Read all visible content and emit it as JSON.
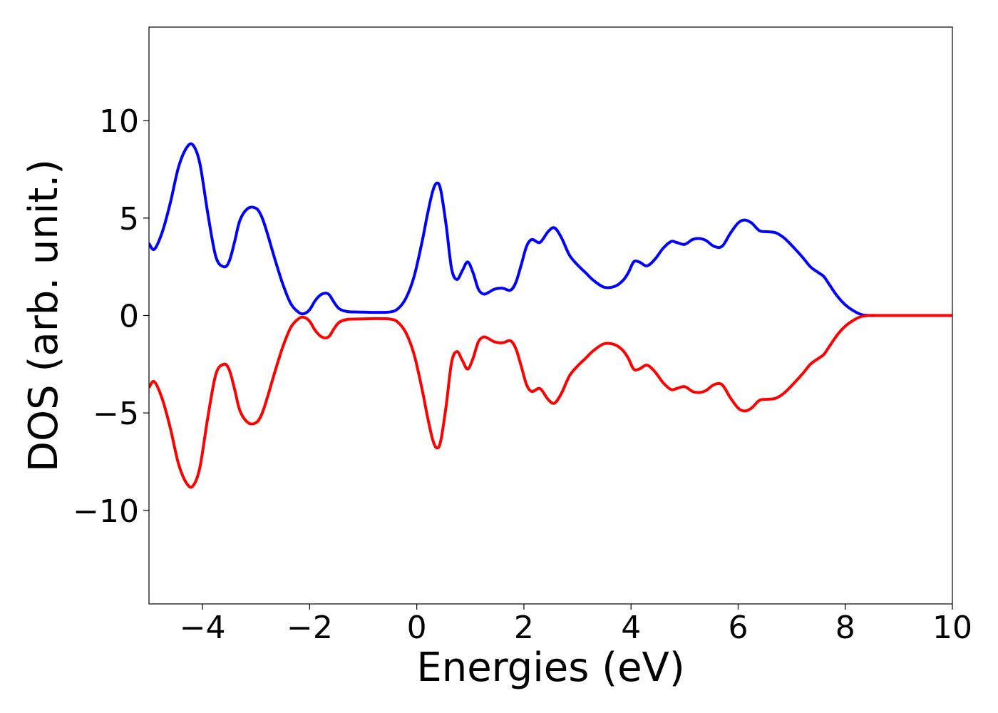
{
  "chart_data": {
    "type": "line",
    "title": "",
    "xlabel": "Energies (eV)",
    "ylabel": "DOS (arb. unit.)",
    "xlim": [
      -5,
      10
    ],
    "ylim": [
      -14.8,
      14.8
    ],
    "xticks": [
      -4,
      -2,
      0,
      2,
      4,
      6,
      8,
      10
    ],
    "xtick_labels": [
      "−4",
      "−2",
      "0",
      "2",
      "4",
      "6",
      "8",
      "10"
    ],
    "yticks": [
      -10,
      -5,
      0,
      5,
      10
    ],
    "ytick_labels": [
      "−10",
      "−5",
      "0",
      "5",
      "10"
    ],
    "grid": false,
    "legend": "none",
    "series": [
      {
        "color": "#0000ff",
        "x": [
          -5.0,
          -4.9,
          -4.75,
          -4.6,
          -4.45,
          -4.3,
          -4.18,
          -4.05,
          -3.9,
          -3.75,
          -3.6,
          -3.5,
          -3.4,
          -3.3,
          -3.15,
          -3.0,
          -2.9,
          -2.8,
          -2.65,
          -2.5,
          -2.35,
          -2.2,
          -2.1,
          -2.0,
          -1.9,
          -1.8,
          -1.7,
          -1.63,
          -1.55,
          -1.45,
          -1.3,
          -1.1,
          -0.8,
          -0.5,
          -0.35,
          -0.2,
          -0.05,
          0.1,
          0.2,
          0.3,
          0.38,
          0.45,
          0.55,
          0.65,
          0.75,
          0.85,
          0.95,
          1.05,
          1.15,
          1.25,
          1.35,
          1.45,
          1.6,
          1.75,
          1.85,
          1.95,
          2.05,
          2.15,
          2.3,
          2.45,
          2.57,
          2.7,
          2.85,
          3.0,
          3.15,
          3.3,
          3.5,
          3.7,
          3.85,
          3.95,
          4.05,
          4.15,
          4.3,
          4.45,
          4.6,
          4.75,
          4.85,
          5.0,
          5.15,
          5.27,
          5.4,
          5.55,
          5.7,
          5.85,
          6.0,
          6.12,
          6.25,
          6.4,
          6.55,
          6.7,
          6.85,
          7.0,
          7.2,
          7.35,
          7.5,
          7.6,
          7.7,
          7.85,
          8.0,
          8.15,
          8.3,
          8.45,
          8.6,
          9.0,
          10.0
        ],
        "y": [
          3.7,
          3.4,
          4.3,
          5.8,
          7.6,
          8.6,
          8.75,
          7.8,
          5.2,
          3.0,
          2.5,
          2.8,
          3.8,
          4.9,
          5.5,
          5.5,
          5.1,
          4.3,
          2.9,
          1.6,
          0.6,
          0.15,
          0.1,
          0.3,
          0.75,
          1.05,
          1.15,
          1.05,
          0.7,
          0.35,
          0.2,
          0.18,
          0.16,
          0.18,
          0.35,
          0.9,
          2.0,
          3.8,
          5.2,
          6.4,
          6.8,
          6.4,
          4.6,
          2.4,
          1.85,
          2.3,
          2.75,
          2.2,
          1.35,
          1.1,
          1.2,
          1.35,
          1.4,
          1.3,
          1.7,
          2.6,
          3.55,
          3.9,
          3.75,
          4.3,
          4.5,
          4.0,
          3.1,
          2.6,
          2.2,
          1.8,
          1.45,
          1.5,
          1.8,
          2.2,
          2.75,
          2.75,
          2.55,
          2.9,
          3.45,
          3.8,
          3.75,
          3.65,
          3.9,
          3.95,
          3.85,
          3.55,
          3.55,
          4.2,
          4.75,
          4.9,
          4.75,
          4.35,
          4.3,
          4.25,
          4.0,
          3.6,
          3.0,
          2.5,
          2.2,
          2.0,
          1.6,
          1.0,
          0.55,
          0.25,
          0.05,
          0.0,
          0.0,
          0.0,
          0.0
        ]
      },
      {
        "color": "#ff0000",
        "x": [
          -5.0,
          -4.9,
          -4.75,
          -4.6,
          -4.45,
          -4.3,
          -4.18,
          -4.05,
          -3.9,
          -3.75,
          -3.6,
          -3.5,
          -3.4,
          -3.3,
          -3.15,
          -3.0,
          -2.9,
          -2.8,
          -2.65,
          -2.5,
          -2.35,
          -2.2,
          -2.1,
          -2.0,
          -1.9,
          -1.8,
          -1.7,
          -1.63,
          -1.55,
          -1.45,
          -1.3,
          -1.1,
          -0.8,
          -0.5,
          -0.35,
          -0.2,
          -0.05,
          0.1,
          0.2,
          0.3,
          0.38,
          0.45,
          0.55,
          0.65,
          0.75,
          0.85,
          0.95,
          1.05,
          1.15,
          1.25,
          1.35,
          1.45,
          1.6,
          1.75,
          1.85,
          1.95,
          2.05,
          2.15,
          2.3,
          2.45,
          2.57,
          2.7,
          2.85,
          3.0,
          3.15,
          3.3,
          3.5,
          3.7,
          3.85,
          3.95,
          4.05,
          4.15,
          4.3,
          4.45,
          4.6,
          4.75,
          4.85,
          5.0,
          5.15,
          5.27,
          5.4,
          5.55,
          5.7,
          5.85,
          6.0,
          6.12,
          6.25,
          6.4,
          6.55,
          6.7,
          6.85,
          7.0,
          7.2,
          7.35,
          7.5,
          7.6,
          7.7,
          7.85,
          8.0,
          8.15,
          8.3,
          8.45,
          8.6,
          9.0,
          10.0
        ],
        "y": [
          -3.7,
          -3.4,
          -4.3,
          -5.8,
          -7.6,
          -8.6,
          -8.75,
          -7.8,
          -5.2,
          -3.0,
          -2.5,
          -2.8,
          -3.8,
          -4.9,
          -5.5,
          -5.5,
          -5.1,
          -4.3,
          -2.9,
          -1.6,
          -0.6,
          -0.15,
          -0.1,
          -0.3,
          -0.75,
          -1.05,
          -1.15,
          -1.05,
          -0.7,
          -0.35,
          -0.2,
          -0.18,
          -0.16,
          -0.18,
          -0.35,
          -0.9,
          -2.0,
          -3.8,
          -5.2,
          -6.4,
          -6.8,
          -6.4,
          -4.6,
          -2.4,
          -1.85,
          -2.3,
          -2.75,
          -2.2,
          -1.35,
          -1.1,
          -1.2,
          -1.35,
          -1.4,
          -1.3,
          -1.7,
          -2.6,
          -3.55,
          -3.9,
          -3.75,
          -4.3,
          -4.5,
          -4.0,
          -3.1,
          -2.6,
          -2.2,
          -1.8,
          -1.45,
          -1.5,
          -1.8,
          -2.2,
          -2.75,
          -2.75,
          -2.55,
          -2.9,
          -3.45,
          -3.8,
          -3.75,
          -3.65,
          -3.9,
          -3.95,
          -3.85,
          -3.55,
          -3.55,
          -4.2,
          -4.75,
          -4.9,
          -4.75,
          -4.35,
          -4.3,
          -4.25,
          -4.0,
          -3.6,
          -3.0,
          -2.5,
          -2.2,
          -2.0,
          -1.6,
          -1.0,
          -0.55,
          -0.25,
          -0.05,
          0.0,
          0.0,
          0.0,
          0.0
        ]
      }
    ]
  }
}
